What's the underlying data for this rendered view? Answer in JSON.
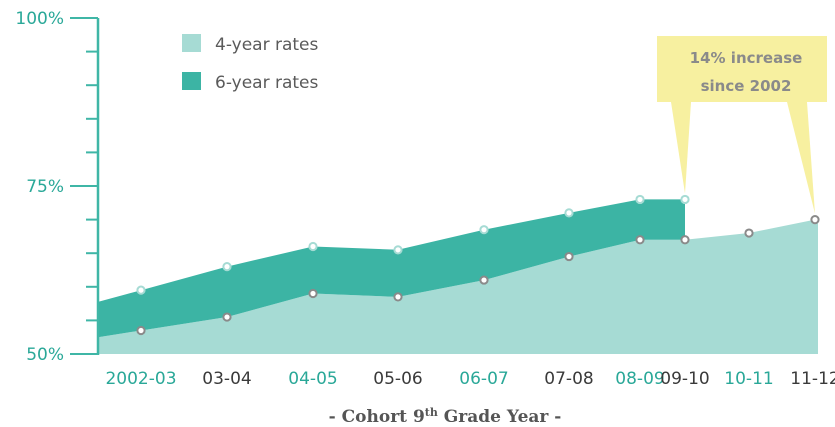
{
  "chart_data": {
    "type": "area",
    "categories": [
      "2002-03",
      "03-04",
      "04-05",
      "05-06",
      "06-07",
      "07-08",
      "08-09",
      "09-10",
      "10-11",
      "11-12"
    ],
    "series": [
      {
        "name": "4-year rates",
        "values": [
          53.5,
          55.5,
          59,
          58.5,
          61,
          64.5,
          67,
          67,
          68,
          70
        ]
      },
      {
        "name": "6-year rates",
        "values": [
          59.5,
          63,
          66,
          65.5,
          68.5,
          71,
          73,
          73,
          null,
          null
        ]
      }
    ],
    "ylim": [
      50,
      100
    ],
    "yticks": [
      {
        "value": 100,
        "label": "100%"
      },
      {
        "value": 75,
        "label": "75%"
      },
      {
        "value": 50,
        "label": "50%"
      }
    ],
    "xlabel": {
      "prefix": "- Cohort 9",
      "sup": "th",
      "suffix": " Grade Year -"
    },
    "legend": {
      "position": "top-left",
      "entries": [
        "4-year rates",
        "6-year rates"
      ]
    },
    "annotation": {
      "lines": [
        "14% increase",
        "since 2002"
      ],
      "points_to": [
        "09-10",
        "11-12"
      ]
    },
    "grid": false,
    "colors": {
      "four_year": "#a6dbd4",
      "six_year": "#3cb4a4",
      "axis": "#3fb6a6",
      "tick_label_teal": "#2aa898",
      "tick_label_dark": "#3a3a3a",
      "callout": "#f7f0a0",
      "marker_fill": "#ffffff",
      "marker_stroke_4yr": "#8a8a8a",
      "marker_stroke_6yr": "#a6dbd4"
    },
    "xtick_teal_indices": [
      0,
      2,
      4,
      6,
      8
    ]
  }
}
